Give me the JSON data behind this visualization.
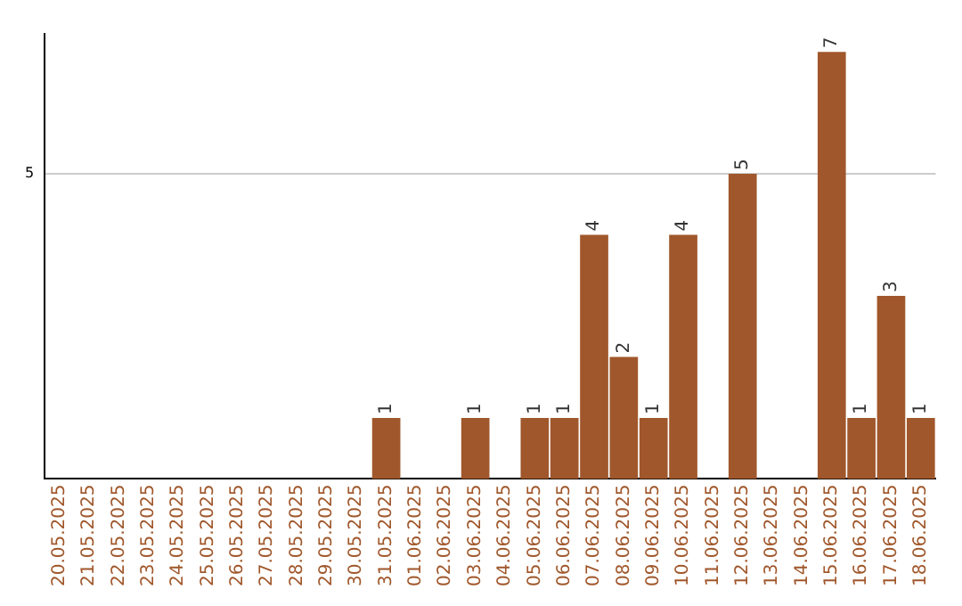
{
  "chart_data": {
    "type": "bar",
    "categories": [
      "20.05.2025",
      "21.05.2025",
      "22.05.2025",
      "23.05.2025",
      "24.05.2025",
      "25.05.2025",
      "26.05.2025",
      "27.05.2025",
      "28.05.2025",
      "29.05.2025",
      "30.05.2025",
      "31.05.2025",
      "01.06.2025",
      "02.06.2025",
      "03.06.2025",
      "04.06.2025",
      "05.06.2025",
      "06.06.2025",
      "07.06.2025",
      "08.06.2025",
      "09.06.2025",
      "10.06.2025",
      "11.06.2025",
      "12.06.2025",
      "13.06.2025",
      "14.06.2025",
      "15.06.2025",
      "16.06.2025",
      "17.06.2025",
      "18.06.2025"
    ],
    "values": [
      0,
      0,
      0,
      0,
      0,
      0,
      0,
      0,
      0,
      0,
      0,
      1,
      0,
      0,
      1,
      0,
      1,
      1,
      4,
      2,
      1,
      4,
      0,
      5,
      0,
      0,
      7,
      1,
      3,
      1
    ],
    "value_labels": [
      null,
      null,
      null,
      null,
      null,
      null,
      null,
      null,
      null,
      null,
      null,
      "1",
      null,
      null,
      "1",
      null,
      "1",
      "1",
      "4",
      "2",
      "1",
      "4",
      null,
      "5",
      null,
      null,
      "7",
      "1",
      "3",
      "1"
    ],
    "color": "#a0572b",
    "ylim": [
      0,
      7.3
    ],
    "yticks": [
      5
    ],
    "grid": "y",
    "legend": false
  }
}
